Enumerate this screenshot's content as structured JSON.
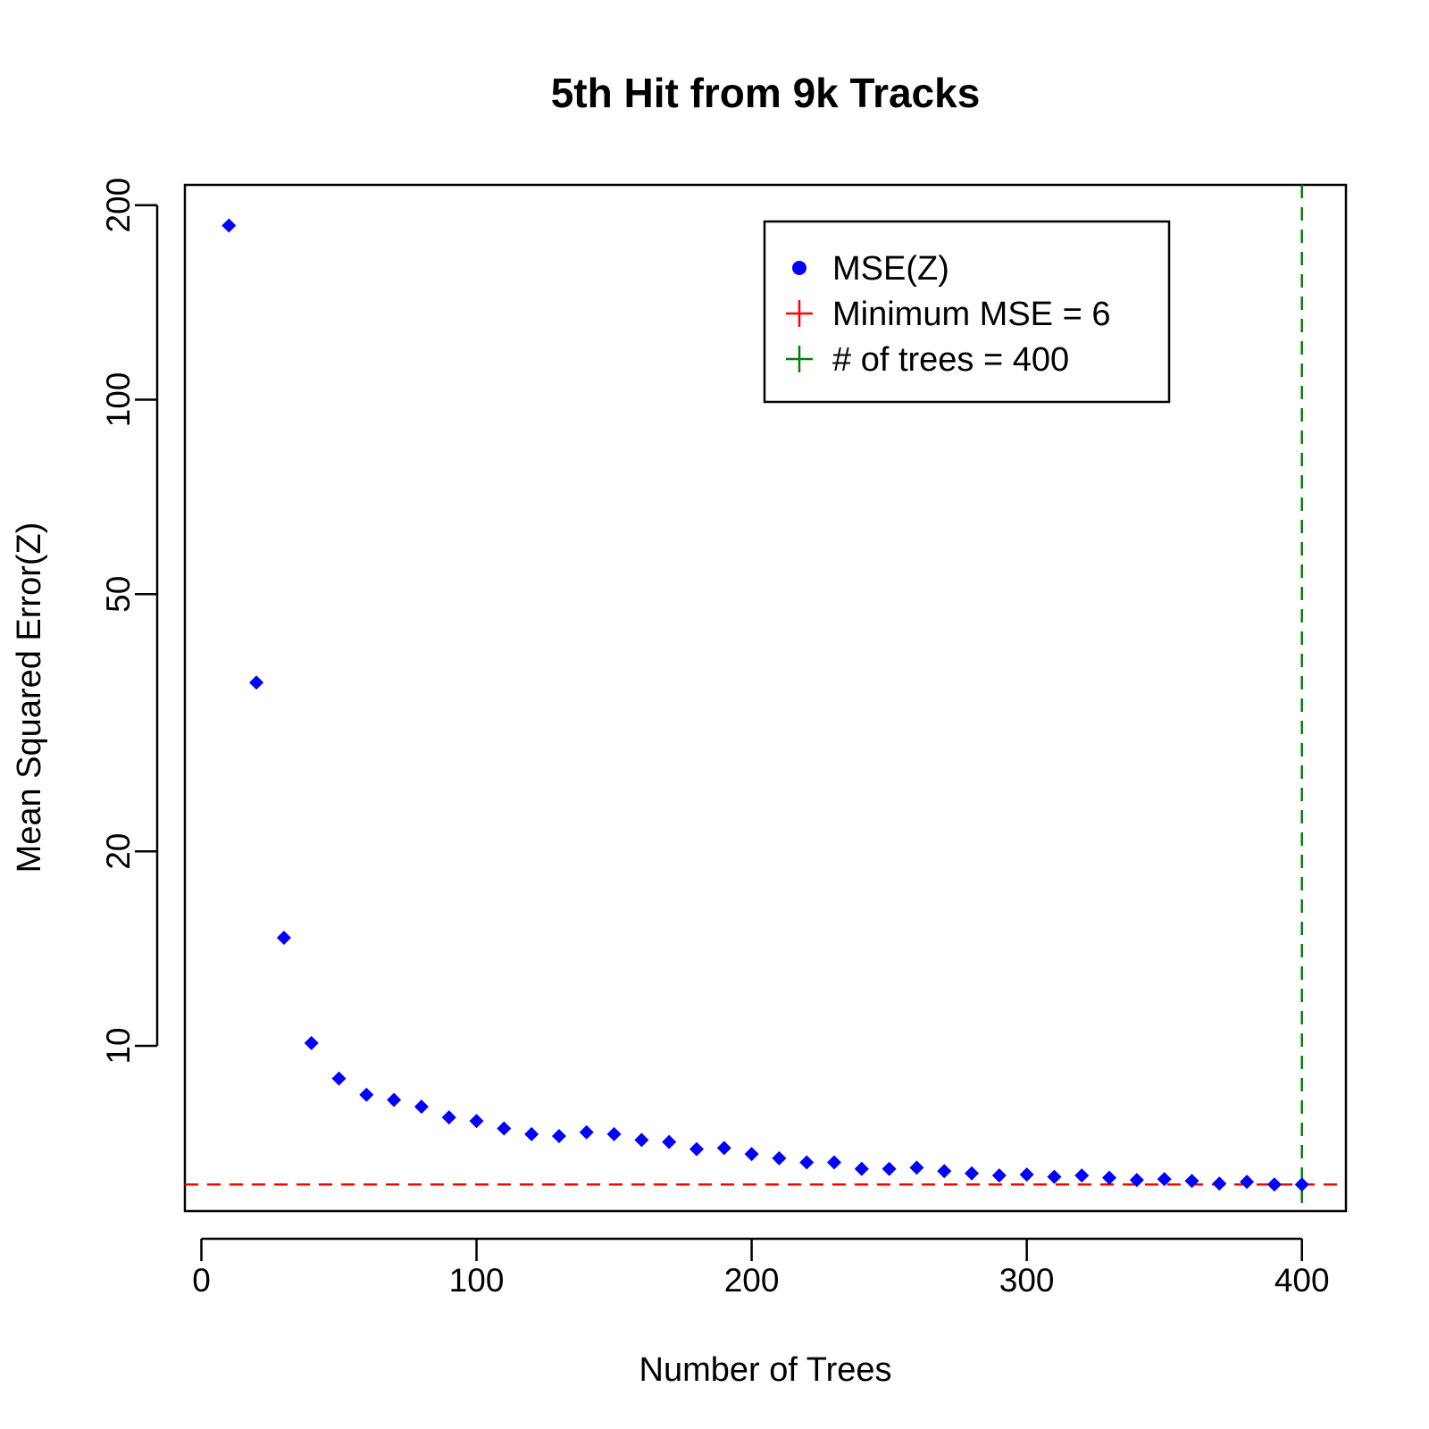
{
  "chart_data": {
    "type": "scatter",
    "title": "5th Hit from 9k Tracks",
    "xlabel": "Number of Trees",
    "ylabel": "Mean Squared Error(Z)",
    "xlim": [
      -6,
      416
    ],
    "ylim_log": [
      5.55,
      215
    ],
    "y_scale": "log",
    "x_ticks": [
      0,
      100,
      200,
      300,
      400
    ],
    "y_ticks": [
      10,
      20,
      50,
      100,
      200
    ],
    "grid": false,
    "legend_position": "top-right",
    "x": [
      10,
      20,
      30,
      40,
      50,
      60,
      70,
      80,
      90,
      100,
      110,
      120,
      130,
      140,
      150,
      160,
      170,
      180,
      190,
      200,
      210,
      220,
      230,
      240,
      250,
      260,
      270,
      280,
      290,
      300,
      310,
      320,
      330,
      340,
      350,
      360,
      370,
      380,
      390,
      400
    ],
    "y": [
      186,
      36.5,
      14.7,
      10.1,
      8.9,
      8.4,
      8.25,
      8.05,
      7.75,
      7.65,
      7.45,
      7.3,
      7.25,
      7.35,
      7.3,
      7.15,
      7.1,
      6.92,
      6.95,
      6.8,
      6.7,
      6.6,
      6.6,
      6.45,
      6.45,
      6.48,
      6.4,
      6.35,
      6.3,
      6.32,
      6.27,
      6.3,
      6.25,
      6.2,
      6.22,
      6.18,
      6.12,
      6.16,
      6.1,
      6.1
    ],
    "hline": {
      "y": 6.1,
      "color": "#ff0000"
    },
    "vline": {
      "x": 400,
      "color": "#008000"
    },
    "point_color": "#0000ff",
    "legend": [
      {
        "label": "MSE(Z)",
        "symbol": "dot",
        "color": "#0000ff"
      },
      {
        "label": "Minimum MSE =  6",
        "symbol": "plus",
        "color": "#ff0000"
      },
      {
        "label": "# of trees = 400",
        "symbol": "plus",
        "color": "#008000"
      }
    ]
  }
}
